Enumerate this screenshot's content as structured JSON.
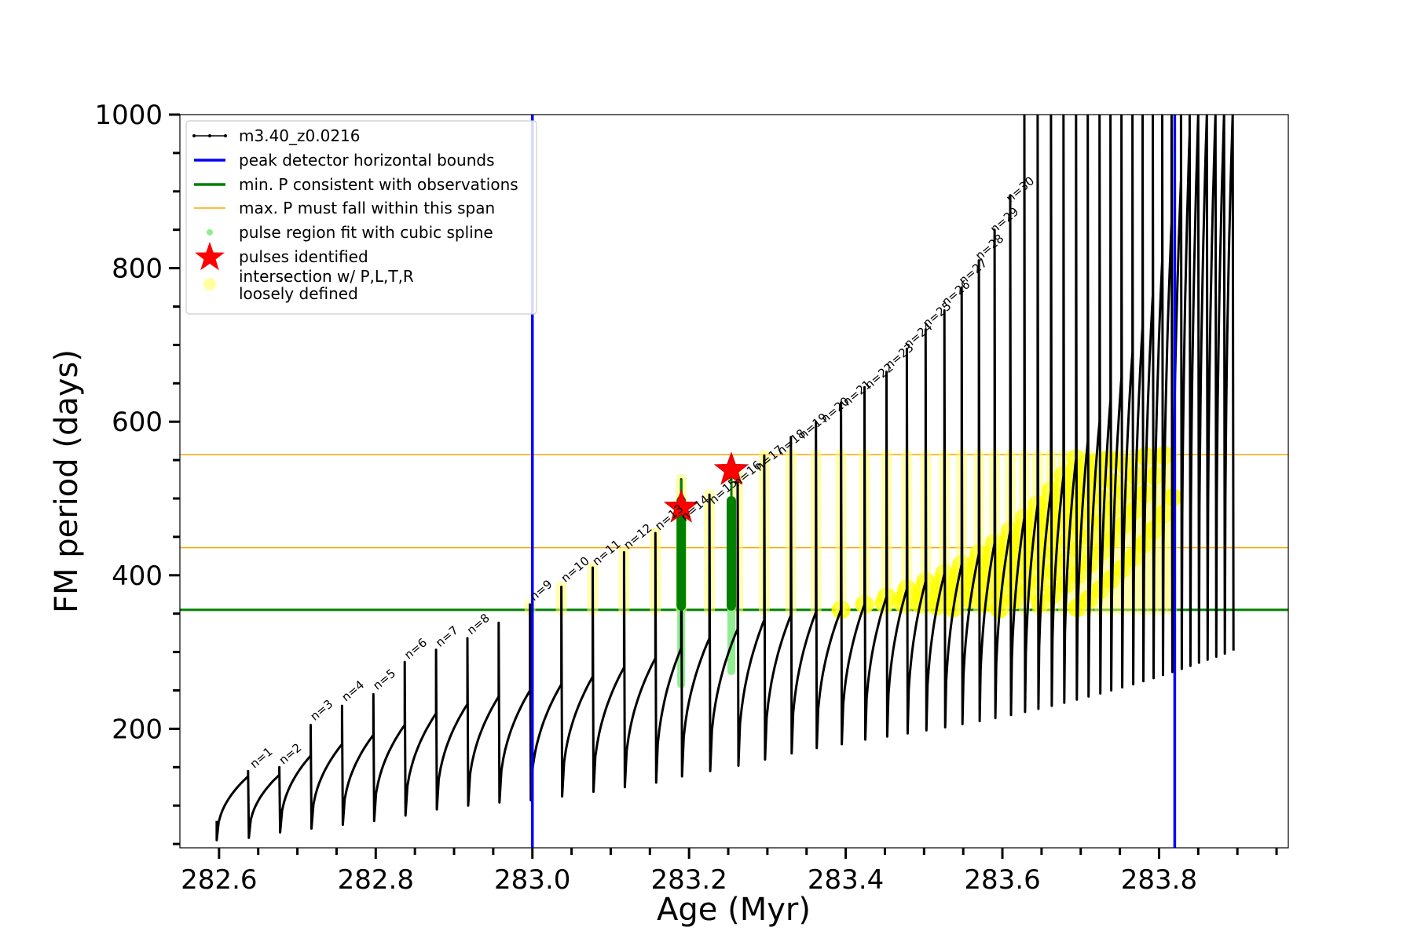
{
  "chart_data": {
    "type": "line",
    "title": "",
    "xlabel": "Age (Myr)",
    "ylabel": "FM period (days)",
    "xlim": [
      282.55,
      283.965
    ],
    "ylim": [
      45,
      1000
    ],
    "x_ticks": [
      282.6,
      282.8,
      283.0,
      283.2,
      283.4,
      283.6,
      283.8
    ],
    "x_tick_labels": [
      "282.6",
      "282.8",
      "283.0",
      "283.2",
      "283.4",
      "283.6",
      "283.8"
    ],
    "y_ticks": [
      200,
      400,
      600,
      800,
      1000
    ],
    "y_tick_labels": [
      "200",
      "400",
      "600",
      "800",
      "1000"
    ],
    "grid": false,
    "legend_placement": "top-left",
    "legend": [
      {
        "label": "m3.40_z0.0216",
        "kind": "line-marker",
        "color": "#000000"
      },
      {
        "label": "peak detector horizontal bounds",
        "kind": "line",
        "color": "#0000ff"
      },
      {
        "label": "min. P consistent with observations",
        "kind": "line",
        "color": "#008000"
      },
      {
        "label": "max. P must fall within this span",
        "kind": "thin-line",
        "color": "#ffa500"
      },
      {
        "label": "pulse region fit with cubic spline",
        "kind": "dot",
        "color": "#90ee90"
      },
      {
        "label": "pulses identified",
        "kind": "star",
        "color": "#ff0000"
      },
      {
        "label": "intersection w/ P,L,T,R\nloosely defined",
        "kind": "big-dot",
        "color": "#ffffa0"
      }
    ],
    "vertical_lines": [
      {
        "x": 283.0,
        "color": "#0000ff"
      },
      {
        "x": 283.82,
        "color": "#0000ff"
      }
    ],
    "horizontal_lines": [
      {
        "y": 355,
        "color": "#008000",
        "kind": "min_period"
      },
      {
        "y": 436,
        "color": "#ffa500",
        "kind": "max_span_low"
      },
      {
        "y": 557,
        "color": "#ffa500",
        "kind": "max_span_high"
      }
    ],
    "series_name": "m3.40_z0.0216",
    "pulses": [
      {
        "n": 1,
        "age": 282.637,
        "min_P": 58,
        "pre_P": 138,
        "peak_P": 145
      },
      {
        "n": 2,
        "age": 282.677,
        "min_P": 65,
        "pre_P": 140,
        "peak_P": 150
      },
      {
        "n": 3,
        "age": 282.717,
        "min_P": 70,
        "pre_P": 165,
        "peak_P": 205
      },
      {
        "n": 4,
        "age": 282.757,
        "min_P": 75,
        "pre_P": 180,
        "peak_P": 230
      },
      {
        "n": 5,
        "age": 282.797,
        "min_P": 80,
        "pre_P": 192,
        "peak_P": 245
      },
      {
        "n": 6,
        "age": 282.837,
        "min_P": 87,
        "pre_P": 205,
        "peak_P": 287
      },
      {
        "n": 7,
        "age": 282.877,
        "min_P": 95,
        "pre_P": 220,
        "peak_P": 303
      },
      {
        "n": 8,
        "age": 282.917,
        "min_P": 100,
        "pre_P": 232,
        "peak_P": 318
      },
      {
        "n": 9,
        "age": 282.957,
        "min_P": 104,
        "pre_P": 242,
        "peak_P": 338
      },
      {
        "n": 10,
        "age": 282.997,
        "min_P": 107,
        "pre_P": 250,
        "peak_P": 362
      },
      {
        "n": 11,
        "age": 283.037,
        "min_P": 112,
        "pre_P": 258,
        "peak_P": 385
      },
      {
        "n": 12,
        "age": 283.077,
        "min_P": 118,
        "pre_P": 268,
        "peak_P": 410
      },
      {
        "n": 13,
        "age": 283.117,
        "min_P": 124,
        "pre_P": 280,
        "peak_P": 430
      },
      {
        "n": 14,
        "age": 283.157,
        "min_P": 130,
        "pre_P": 292,
        "peak_P": 455
      },
      {
        "n": 15,
        "age": 283.19,
        "min_P": 138,
        "pre_P": 305,
        "peak_P": 525
      },
      {
        "n": 16,
        "age": 283.226,
        "min_P": 145,
        "pre_P": 318,
        "peak_P": 505
      },
      {
        "n": 17,
        "age": 283.262,
        "min_P": 152,
        "pre_P": 330,
        "peak_P": 530
      },
      {
        "n": 18,
        "age": 283.296,
        "min_P": 160,
        "pre_P": 342,
        "peak_P": 556
      },
      {
        "n": 19,
        "age": 283.33,
        "min_P": 168,
        "pre_P": 348,
        "peak_P": 580
      },
      {
        "n": 20,
        "age": 283.362,
        "min_P": 175,
        "pre_P": 352,
        "peak_P": 600
      },
      {
        "n": 21,
        "age": 283.394,
        "min_P": 180,
        "pre_P": 355,
        "peak_P": 625
      },
      {
        "n": 22,
        "age": 283.424,
        "min_P": 186,
        "pre_P": 362,
        "peak_P": 645
      },
      {
        "n": 23,
        "age": 283.452,
        "min_P": 190,
        "pre_P": 372,
        "peak_P": 665
      },
      {
        "n": 24,
        "age": 283.478,
        "min_P": 194,
        "pre_P": 382,
        "peak_P": 695
      },
      {
        "n": 25,
        "age": 283.502,
        "min_P": 198,
        "pre_P": 392,
        "peak_P": 720
      },
      {
        "n": 26,
        "age": 283.526,
        "min_P": 202,
        "pre_P": 402,
        "peak_P": 745
      },
      {
        "n": 27,
        "age": 283.548,
        "min_P": 206,
        "pre_P": 414,
        "peak_P": 775
      },
      {
        "n": 28,
        "age": 283.57,
        "min_P": 210,
        "pre_P": 428,
        "peak_P": 810
      },
      {
        "n": 29,
        "age": 283.59,
        "min_P": 214,
        "pre_P": 442,
        "peak_P": 850
      },
      {
        "n": 30,
        "age": 283.61,
        "min_P": 218,
        "pre_P": 458,
        "peak_P": 895
      },
      {
        "n": 31,
        "age": 283.628,
        "min_P": 222,
        "pre_P": 475,
        "peak_P": 1000
      },
      {
        "n": 32,
        "age": 283.645,
        "min_P": 226,
        "pre_P": 492,
        "peak_P": 1000
      },
      {
        "n": 33,
        "age": 283.662,
        "min_P": 230,
        "pre_P": 510,
        "peak_P": 1000
      },
      {
        "n": 34,
        "age": 283.678,
        "min_P": 234,
        "pre_P": 530,
        "peak_P": 1000
      },
      {
        "n": 35,
        "age": 283.694,
        "min_P": 238,
        "pre_P": 552,
        "peak_P": 1000
      },
      {
        "n": 36,
        "age": 283.709,
        "min_P": 242,
        "pre_P": 575,
        "peak_P": 1000
      },
      {
        "n": 37,
        "age": 283.724,
        "min_P": 246,
        "pre_P": 600,
        "peak_P": 1000
      },
      {
        "n": 38,
        "age": 283.738,
        "min_P": 250,
        "pre_P": 628,
        "peak_P": 1000
      },
      {
        "n": 39,
        "age": 283.752,
        "min_P": 254,
        "pre_P": 658,
        "peak_P": 1000
      },
      {
        "n": 40,
        "age": 283.766,
        "min_P": 258,
        "pre_P": 690,
        "peak_P": 1000
      },
      {
        "n": 41,
        "age": 283.779,
        "min_P": 262,
        "pre_P": 725,
        "peak_P": 1000
      },
      {
        "n": 42,
        "age": 283.792,
        "min_P": 266,
        "pre_P": 765,
        "peak_P": 1000
      },
      {
        "n": 43,
        "age": 283.804,
        "min_P": 270,
        "pre_P": 810,
        "peak_P": 1000
      },
      {
        "n": 44,
        "age": 283.816,
        "min_P": 274,
        "pre_P": 860,
        "peak_P": 1000
      },
      {
        "n": 45,
        "age": 283.828,
        "min_P": 278,
        "pre_P": 915,
        "peak_P": 1000
      },
      {
        "n": 46,
        "age": 283.839,
        "min_P": 282,
        "pre_P": 975,
        "peak_P": 1000
      },
      {
        "n": 47,
        "age": 283.85,
        "min_P": 286,
        "pre_P": 1000,
        "peak_P": 1000
      },
      {
        "n": 48,
        "age": 283.861,
        "min_P": 290,
        "pre_P": 1000,
        "peak_P": 1000
      },
      {
        "n": 49,
        "age": 283.872,
        "min_P": 294,
        "pre_P": 1000,
        "peak_P": 1000
      },
      {
        "n": 50,
        "age": 283.883,
        "min_P": 298,
        "pre_P": 1000,
        "peak_P": 1000
      },
      {
        "n": 51,
        "age": 283.894,
        "min_P": 302,
        "pre_P": 1000,
        "peak_P": 1000
      }
    ],
    "pulse_labels": [
      {
        "text": "n=1",
        "x": 282.645,
        "y": 148
      },
      {
        "text": "n=2",
        "x": 282.682,
        "y": 153
      },
      {
        "text": "n=3",
        "x": 282.722,
        "y": 210
      },
      {
        "text": "n=4",
        "x": 282.762,
        "y": 235
      },
      {
        "text": "n=5",
        "x": 282.802,
        "y": 250
      },
      {
        "text": "n=6",
        "x": 282.842,
        "y": 290
      },
      {
        "text": "n=7",
        "x": 282.882,
        "y": 306
      },
      {
        "text": "n=8",
        "x": 282.922,
        "y": 322
      },
      {
        "text": "n=9",
        "x": 283.002,
        "y": 366
      },
      {
        "text": "n=10",
        "x": 283.042,
        "y": 390
      },
      {
        "text": "n=11",
        "x": 283.082,
        "y": 412
      },
      {
        "text": "n=12",
        "x": 283.122,
        "y": 433
      },
      {
        "text": "n=13",
        "x": 283.162,
        "y": 458
      },
      {
        "text": "n=14",
        "x": 283.195,
        "y": 470
      },
      {
        "text": "n=15",
        "x": 283.231,
        "y": 492
      },
      {
        "text": "n=16",
        "x": 283.262,
        "y": 515
      },
      {
        "text": "n=17",
        "x": 283.29,
        "y": 535
      },
      {
        "text": "n=18",
        "x": 283.318,
        "y": 556
      },
      {
        "text": "n=19",
        "x": 283.346,
        "y": 577
      },
      {
        "text": "n=20",
        "x": 283.374,
        "y": 598
      },
      {
        "text": "n=21",
        "x": 283.402,
        "y": 620
      },
      {
        "text": "n=22",
        "x": 283.43,
        "y": 642
      },
      {
        "text": "n=23",
        "x": 283.456,
        "y": 668
      },
      {
        "text": "n=24",
        "x": 283.48,
        "y": 695
      },
      {
        "text": "n=25",
        "x": 283.504,
        "y": 722
      },
      {
        "text": "n=26",
        "x": 283.528,
        "y": 750
      },
      {
        "text": "n=27",
        "x": 283.55,
        "y": 778
      },
      {
        "text": "n=28",
        "x": 283.571,
        "y": 810
      },
      {
        "text": "n=29",
        "x": 283.59,
        "y": 845
      },
      {
        "text": "n=30",
        "x": 283.61,
        "y": 885
      }
    ],
    "spline_pulses": [
      {
        "age": 283.19,
        "from": 258,
        "to": 500
      },
      {
        "age": 283.254,
        "from": 275,
        "to": 497
      }
    ],
    "green_segments": [
      {
        "age": 283.19,
        "from": 360,
        "to": 525
      },
      {
        "age": 283.254,
        "from": 360,
        "to": 530
      }
    ],
    "stars": [
      {
        "x": 283.19,
        "y": 488
      },
      {
        "x": 283.254,
        "y": 537
      }
    ],
    "intersection_region": {
      "x_start": 283.0,
      "x_end": 283.82,
      "y_low": 355,
      "y_high": 557
    }
  }
}
